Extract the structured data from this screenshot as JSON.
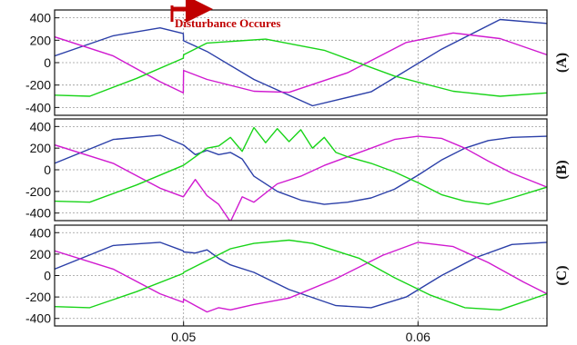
{
  "chart_data": [
    {
      "type": "line",
      "panel_label": "(A)",
      "annotation": "Disturbance Occures",
      "xlim": [
        0.0445,
        0.0655
      ],
      "ylim": [
        -470,
        470
      ],
      "yticks": [
        400,
        200,
        0,
        -200,
        -400
      ],
      "ytick_labels": [
        "400",
        "200",
        "0",
        "-200",
        "-400"
      ],
      "grid": true,
      "series": [
        {
          "color": "#2b3fa8",
          "x": [
            0.0445,
            0.047,
            0.049,
            0.04999,
            0.05,
            0.051,
            0.053,
            0.0555,
            0.058,
            0.061,
            0.0635,
            0.0655
          ],
          "y": [
            60,
            240,
            310,
            260,
            195,
            100,
            -150,
            -385,
            -260,
            120,
            385,
            350
          ]
        },
        {
          "color": "#d01ad0",
          "x": [
            0.0445,
            0.047,
            0.049,
            0.04999,
            0.05,
            0.051,
            0.053,
            0.0545,
            0.057,
            0.0595,
            0.0615,
            0.0635,
            0.0655
          ],
          "y": [
            230,
            60,
            -170,
            -270,
            -70,
            -150,
            -255,
            -265,
            -90,
            180,
            265,
            215,
            70
          ]
        },
        {
          "color": "#18d418",
          "x": [
            0.0445,
            0.046,
            0.048,
            0.04999,
            0.05,
            0.051,
            0.0535,
            0.056,
            0.059,
            0.0615,
            0.0635,
            0.0655
          ],
          "y": [
            -290,
            -300,
            -140,
            40,
            70,
            175,
            210,
            110,
            -120,
            -255,
            -300,
            -270
          ]
        }
      ]
    },
    {
      "type": "line",
      "panel_label": "(B)",
      "xlim": [
        0.0445,
        0.0655
      ],
      "ylim": [
        -470,
        470
      ],
      "yticks": [
        400,
        200,
        0,
        -200,
        -400
      ],
      "ytick_labels": [
        "400",
        "200",
        "0",
        "-200",
        "-400"
      ],
      "grid": true,
      "series": [
        {
          "color": "#2b3fa8",
          "x": [
            0.0445,
            0.047,
            0.049,
            0.04999,
            0.0505,
            0.051,
            0.0515,
            0.052,
            0.0525,
            0.053,
            0.054,
            0.055,
            0.056,
            0.057,
            0.058,
            0.059,
            0.06,
            0.061,
            0.062,
            0.063,
            0.064,
            0.0655
          ],
          "y": [
            60,
            280,
            320,
            230,
            140,
            180,
            140,
            160,
            100,
            -60,
            -200,
            -280,
            -320,
            -300,
            -260,
            -180,
            -50,
            90,
            200,
            270,
            300,
            310
          ]
        },
        {
          "color": "#d01ad0",
          "x": [
            0.0445,
            0.047,
            0.049,
            0.04999,
            0.0505,
            0.051,
            0.0515,
            0.052,
            0.0525,
            0.053,
            0.054,
            0.055,
            0.056,
            0.057,
            0.058,
            0.059,
            0.06,
            0.061,
            0.062,
            0.063,
            0.064,
            0.0655
          ],
          "y": [
            230,
            60,
            -170,
            -250,
            -90,
            -240,
            -320,
            -480,
            -250,
            -300,
            -130,
            -60,
            40,
            120,
            200,
            280,
            310,
            290,
            200,
            80,
            -30,
            -160
          ]
        },
        {
          "color": "#18d418",
          "x": [
            0.0445,
            0.046,
            0.048,
            0.04999,
            0.0505,
            0.051,
            0.0515,
            0.052,
            0.0525,
            0.053,
            0.0535,
            0.054,
            0.0545,
            0.055,
            0.0555,
            0.056,
            0.0565,
            0.057,
            0.058,
            0.059,
            0.06,
            0.061,
            0.062,
            0.063,
            0.064,
            0.0655
          ],
          "y": [
            -290,
            -300,
            -140,
            40,
            120,
            200,
            220,
            300,
            170,
            390,
            250,
            380,
            260,
            370,
            200,
            300,
            160,
            120,
            60,
            -20,
            -120,
            -230,
            -290,
            -320,
            -260,
            -160
          ]
        }
      ]
    },
    {
      "type": "line",
      "panel_label": "(C)",
      "xlim": [
        0.0445,
        0.0655
      ],
      "ylim": [
        -470,
        470
      ],
      "yticks": [
        400,
        200,
        0,
        -200,
        -400
      ],
      "ytick_labels": [
        "400",
        "200",
        "0",
        "-200",
        "-400"
      ],
      "xticks": [
        0.05,
        0.06
      ],
      "xtick_labels": [
        "0.05",
        "0.06"
      ],
      "grid": true,
      "series": [
        {
          "color": "#2b3fa8",
          "x": [
            0.0445,
            0.047,
            0.049,
            0.04999,
            0.05,
            0.0505,
            0.051,
            0.0515,
            0.052,
            0.053,
            0.0545,
            0.0565,
            0.058,
            0.0595,
            0.061,
            0.0625,
            0.064,
            0.0655
          ],
          "y": [
            60,
            280,
            310,
            230,
            220,
            210,
            240,
            160,
            100,
            30,
            -130,
            -280,
            -300,
            -200,
            0,
            170,
            290,
            310
          ]
        },
        {
          "color": "#d01ad0",
          "x": [
            0.0445,
            0.047,
            0.049,
            0.04999,
            0.05,
            0.0505,
            0.051,
            0.0515,
            0.052,
            0.053,
            0.0545,
            0.0565,
            0.0585,
            0.06,
            0.0615,
            0.063,
            0.0645,
            0.0655
          ],
          "y": [
            230,
            60,
            -170,
            -250,
            -220,
            -280,
            -340,
            -300,
            -320,
            -270,
            -210,
            -30,
            190,
            310,
            270,
            120,
            -60,
            -170
          ]
        },
        {
          "color": "#18d418",
          "x": [
            0.0445,
            0.046,
            0.048,
            0.04999,
            0.05,
            0.051,
            0.052,
            0.053,
            0.0545,
            0.0555,
            0.0575,
            0.059,
            0.0605,
            0.062,
            0.0635,
            0.0655
          ],
          "y": [
            -290,
            -300,
            -150,
            20,
            30,
            140,
            250,
            300,
            330,
            300,
            160,
            -20,
            -180,
            -300,
            -320,
            -170
          ]
        }
      ]
    }
  ]
}
